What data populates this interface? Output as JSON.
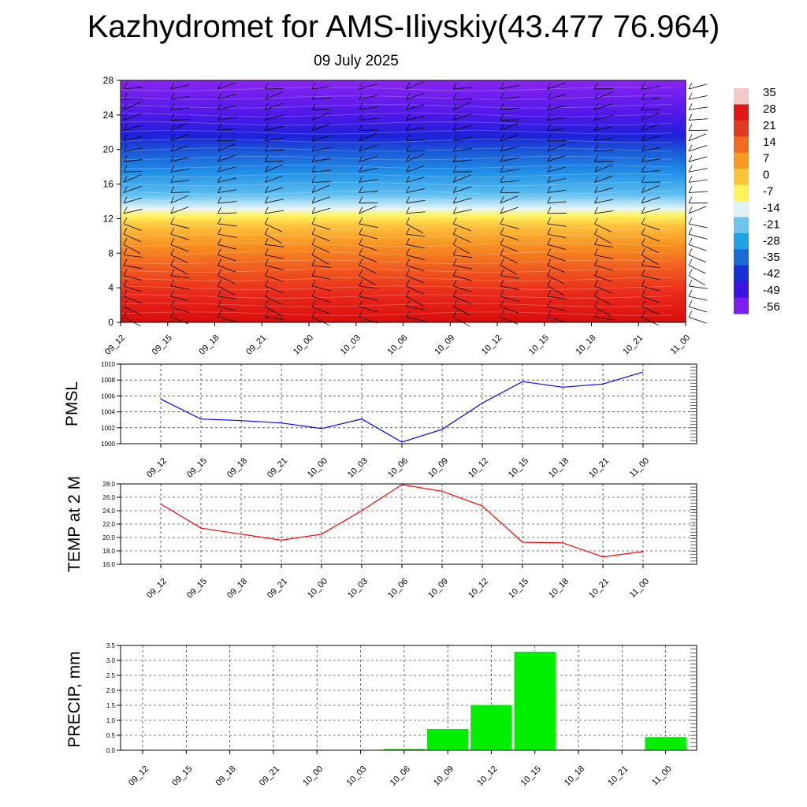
{
  "header": {
    "title": "Kazhydromet for AMS-Iliyskiy(43.477 76.964)",
    "subtitle": "09 July 2025"
  },
  "chart_data": [
    {
      "type": "heatmap",
      "name": "temperature-wind-cross-section",
      "x_ticks": [
        "09_12",
        "09_15",
        "09_18",
        "09_21",
        "10_00",
        "10_03",
        "10_06",
        "10_09",
        "10_12",
        "10_15",
        "10_18",
        "10_21",
        "11_00"
      ],
      "y_ticks": [
        0,
        4,
        8,
        12,
        16,
        20,
        24,
        28
      ],
      "ylim": [
        0,
        28
      ],
      "colorbar_labels": [
        "35",
        "28",
        "21",
        "14",
        "7",
        "0",
        "-7",
        "-14",
        "-21",
        "-28",
        "-35",
        "-42",
        "-49",
        "-56"
      ],
      "colorbar_colors": [
        "#f3c9c9",
        "#e01818",
        "#e23a20",
        "#f06a20",
        "#f89a22",
        "#fbc53a",
        "#fff35a",
        "#dff2f5",
        "#6fc4ee",
        "#1fa2e6",
        "#1a6ad8",
        "#1b2fd8",
        "#3a14e6",
        "#7a1ff0"
      ],
      "note_levels": "temperature decreases with height: red near 0, orange-yellow to 12, light blue ~14, blue 16-22, violet above 24"
    },
    {
      "type": "line",
      "name": "pmsl",
      "ylabel": "PMSL",
      "categories": [
        "09_12",
        "09_15",
        "09_18",
        "09_21",
        "10_00",
        "10_03",
        "10_06",
        "10_09",
        "10_12",
        "10_15",
        "10_18",
        "10_21",
        "11_00"
      ],
      "values": [
        1005.6,
        1003.1,
        1002.9,
        1002.6,
        1001.9,
        1003.1,
        1000.2,
        1001.8,
        1005.1,
        1007.8,
        1007.1,
        1007.5,
        1009.0
      ],
      "ylim": [
        1000,
        1010
      ],
      "y_ticks": [
        "1000",
        "1002",
        "1004",
        "1006",
        "1008",
        "1010"
      ],
      "color": "#0000ff",
      "grid": true
    },
    {
      "type": "line",
      "name": "temp-2m",
      "ylabel": "TEMP at 2 M",
      "categories": [
        "09_12",
        "09_15",
        "09_18",
        "09_21",
        "10_00",
        "10_03",
        "10_06",
        "10_09",
        "10_12",
        "10_15",
        "10_18",
        "10_21",
        "11_00"
      ],
      "values": [
        25.0,
        21.4,
        20.5,
        19.6,
        20.5,
        24.0,
        27.9,
        26.9,
        24.7,
        19.3,
        19.2,
        17.1,
        17.9
      ],
      "ylim": [
        16,
        28
      ],
      "y_ticks": [
        "16.0",
        "18.0",
        "20.0",
        "22.0",
        "24.0",
        "26.0",
        "28.0"
      ],
      "color": "#ff0000",
      "grid": true
    },
    {
      "type": "bar",
      "name": "precipitation",
      "ylabel": "PRECIP, mm",
      "categories": [
        "09_12",
        "09_15",
        "09_18",
        "09_21",
        "10_00",
        "10_03",
        "10_06",
        "10_09",
        "10_12",
        "10_15",
        "10_18",
        "10_21",
        "11_00"
      ],
      "values": [
        0,
        0,
        0,
        0,
        0,
        0,
        0.05,
        0.72,
        1.52,
        3.3,
        0.03,
        0,
        0.45
      ],
      "ylim": [
        0,
        3.5
      ],
      "y_ticks": [
        "0.0",
        "0.5",
        "1.0",
        "1.5",
        "2.0",
        "2.5",
        "3.0",
        "3.5"
      ],
      "color": "#00ee00",
      "grid": true
    }
  ]
}
